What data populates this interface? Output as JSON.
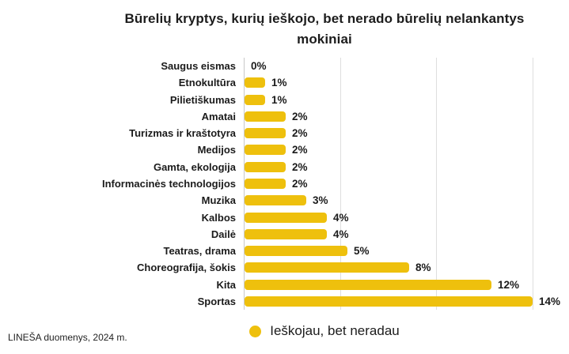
{
  "title": "Būrelių kryptys, kurių ieškojo, bet nerado būrelių nelankantys mokiniai",
  "legend": {
    "label": "Ieškojau, bet neradau"
  },
  "footer": {
    "source": "LINEŠA duomenys, 2024 m."
  },
  "colors": {
    "bar": "#EEC00D",
    "text": "#1B1B1B",
    "gridline": "#DEDEDE",
    "axis": "#C9C9C9",
    "background": "#FFFFFF"
  },
  "chart_data": {
    "type": "bar",
    "orientation": "horizontal",
    "title": "Būrelių kryptys, kurių ieškojo, bet nerado būrelių nelankantys mokiniai",
    "categories": [
      "Saugus eismas",
      "Etnokultūra",
      "Pilietiškumas",
      "Amatai",
      "Turizmas ir kraštotyra",
      "Medijos",
      "Gamta, ekologija",
      "Informacinės technologijos",
      "Muzika",
      "Kalbos",
      "Dailė",
      "Teatras, drama",
      "Choreografija, šokis",
      "Kita",
      "Sportas"
    ],
    "values": [
      0,
      1,
      1,
      2,
      2,
      2,
      2,
      2,
      3,
      4,
      4,
      5,
      8,
      12,
      14
    ],
    "value_labels": [
      "0%",
      "1%",
      "1%",
      "2%",
      "2%",
      "2%",
      "2%",
      "2%",
      "3%",
      "4%",
      "4%",
      "5%",
      "8%",
      "12%",
      "14%"
    ],
    "xlabel": "",
    "ylabel": "",
    "xlim": [
      0,
      14
    ],
    "grid": "vertical gridlines at thirds of plot width, no tick labels",
    "legend_entries": [
      "Ieškojau, bet neradau"
    ],
    "legend_position": "bottom-center",
    "bar_color": "#EEC00D",
    "series_name": "Ieškojau, bet neradau"
  }
}
